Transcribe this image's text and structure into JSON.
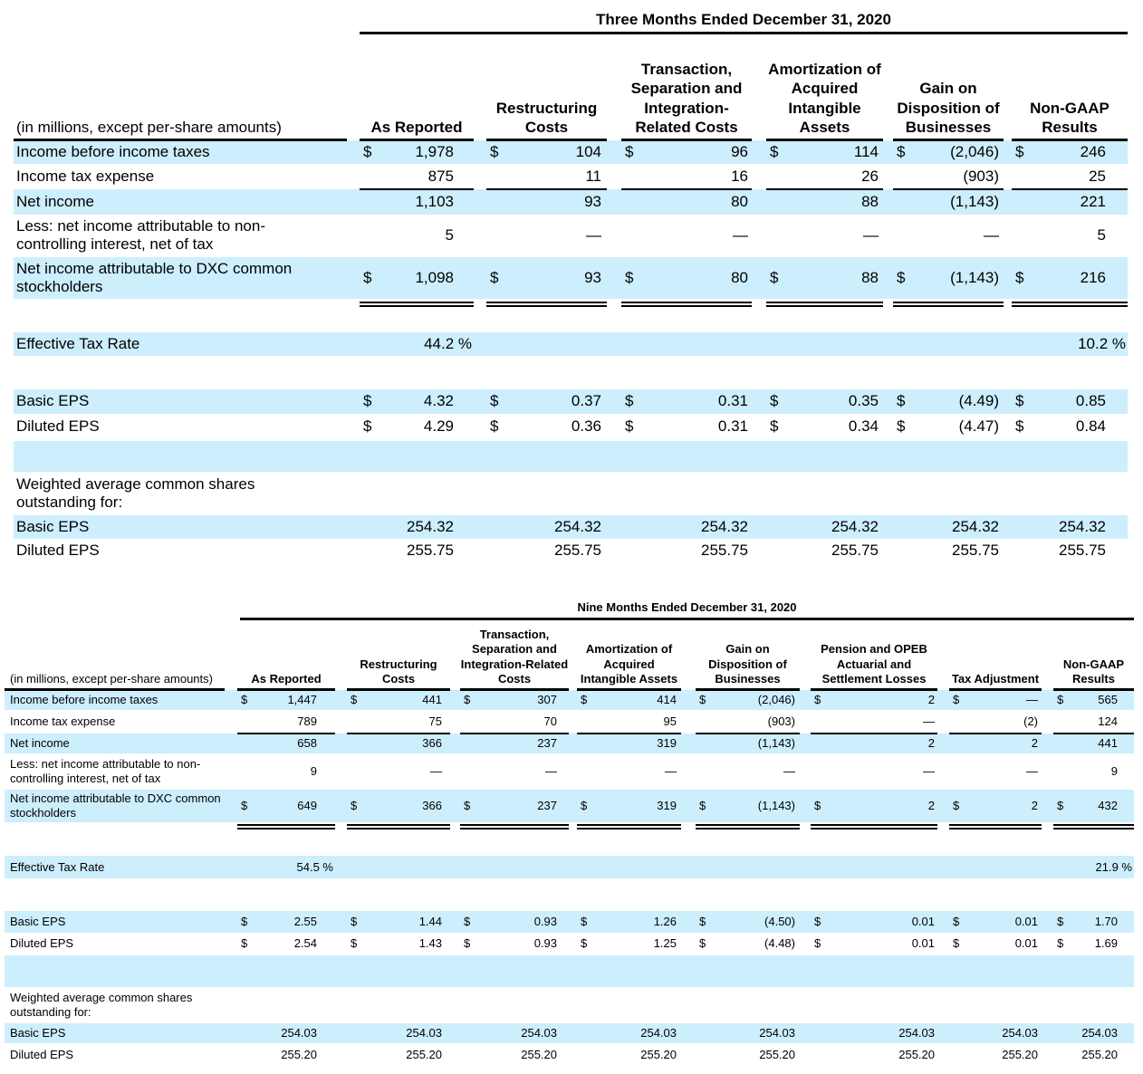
{
  "tables": [
    {
      "title": "Three Months Ended December 31, 2020",
      "units": "(in millions, except per-share amounts)",
      "columns": [
        "As Reported",
        "Restructuring Costs",
        "Transaction, Separation and Integration-Related Costs",
        "Amortization of Acquired Intangible Assets",
        "Gain on Disposition of Businesses",
        "Non-GAAP Results"
      ],
      "rows": [
        {
          "label": "Income before income taxes",
          "cells": [
            [
              "$",
              "1,978"
            ],
            [
              "$",
              "104"
            ],
            [
              "$",
              "96"
            ],
            [
              "$",
              "114"
            ],
            [
              "$",
              "(2,046)"
            ],
            [
              "$",
              "246"
            ]
          ]
        },
        {
          "label": "Income tax expense",
          "cells": [
            "875",
            "11",
            "16",
            "26",
            "(903)",
            "25"
          ]
        },
        {
          "label": "Net income",
          "cells": [
            "1,103",
            "93",
            "80",
            "88",
            "(1,143)",
            "221"
          ]
        },
        {
          "label": "Less: net income attributable to non-controlling interest, net of tax",
          "cells": [
            "5",
            "—",
            "—",
            "—",
            "—",
            "5"
          ]
        },
        {
          "label": "Net income attributable to DXC common stockholders",
          "cells": [
            [
              "$",
              "1,098"
            ],
            [
              "$",
              "93"
            ],
            [
              "$",
              "80"
            ],
            [
              "$",
              "88"
            ],
            [
              "$",
              "(1,143)"
            ],
            [
              "$",
              "216"
            ]
          ]
        },
        {
          "label": "Effective Tax Rate",
          "cells": [
            "44.2 %",
            null,
            null,
            null,
            null,
            "10.2 %"
          ]
        },
        {
          "label": "Basic EPS",
          "cells": [
            [
              "$",
              "4.32"
            ],
            [
              "$",
              "0.37"
            ],
            [
              "$",
              "0.31"
            ],
            [
              "$",
              "0.35"
            ],
            [
              "$",
              "(4.49)"
            ],
            [
              "$",
              "0.85"
            ]
          ]
        },
        {
          "label": "Diluted EPS",
          "cells": [
            [
              "$",
              "4.29"
            ],
            [
              "$",
              "0.36"
            ],
            [
              "$",
              "0.31"
            ],
            [
              "$",
              "0.34"
            ],
            [
              "$",
              "(4.47)"
            ],
            [
              "$",
              "0.84"
            ]
          ]
        },
        {
          "label": "Weighted average common shares outstanding for:"
        },
        {
          "label": "Basic EPS",
          "cells": [
            "254.32",
            "254.32",
            "254.32",
            "254.32",
            "254.32",
            "254.32"
          ]
        },
        {
          "label": "Diluted EPS",
          "cells": [
            "255.75",
            "255.75",
            "255.75",
            "255.75",
            "255.75",
            "255.75"
          ]
        }
      ]
    },
    {
      "title": "Nine Months Ended December 31, 2020",
      "units": "(in millions, except per-share amounts)",
      "columns": [
        "As Reported",
        "Restructuring Costs",
        "Transaction, Separation and Integration-Related Costs",
        "Amortization of Acquired Intangible Assets",
        "Gain on Disposition of Businesses",
        "Pension and OPEB Actuarial and Settlement Losses",
        "Tax Adjustment",
        "Non-GAAP Results"
      ],
      "rows": [
        {
          "label": "Income before income taxes",
          "cells": [
            [
              "$",
              "1,447"
            ],
            [
              "$",
              "441"
            ],
            [
              "$",
              "307"
            ],
            [
              "$",
              "414"
            ],
            [
              "$",
              "(2,046)"
            ],
            [
              "$",
              "2"
            ],
            [
              "$",
              "—"
            ],
            [
              "$",
              "565"
            ]
          ]
        },
        {
          "label": "Income tax expense",
          "cells": [
            "789",
            "75",
            "70",
            "95",
            "(903)",
            "—",
            "(2)",
            "124"
          ]
        },
        {
          "label": "Net income",
          "cells": [
            "658",
            "366",
            "237",
            "319",
            "(1,143)",
            "2",
            "2",
            "441"
          ]
        },
        {
          "label": "Less: net income attributable to non-controlling interest, net of tax",
          "cells": [
            "9",
            "—",
            "—",
            "—",
            "—",
            "—",
            "—",
            "9"
          ]
        },
        {
          "label": "Net income attributable to DXC common stockholders",
          "cells": [
            [
              "$",
              "649"
            ],
            [
              "$",
              "366"
            ],
            [
              "$",
              "237"
            ],
            [
              "$",
              "319"
            ],
            [
              "$",
              "(1,143)"
            ],
            [
              "$",
              "2"
            ],
            [
              "$",
              "2"
            ],
            [
              "$",
              "432"
            ]
          ]
        },
        {
          "label": "Effective Tax Rate",
          "cells": [
            "54.5 %",
            null,
            null,
            null,
            null,
            null,
            null,
            "21.9 %"
          ]
        },
        {
          "label": "Basic EPS",
          "cells": [
            [
              "$",
              "2.55"
            ],
            [
              "$",
              "1.44"
            ],
            [
              "$",
              "0.93"
            ],
            [
              "$",
              "1.26"
            ],
            [
              "$",
              "(4.50)"
            ],
            [
              "$",
              "0.01"
            ],
            [
              "$",
              "0.01"
            ],
            [
              "$",
              "1.70"
            ]
          ]
        },
        {
          "label": "Diluted EPS",
          "cells": [
            [
              "$",
              "2.54"
            ],
            [
              "$",
              "1.43"
            ],
            [
              "$",
              "0.93"
            ],
            [
              "$",
              "1.25"
            ],
            [
              "$",
              "(4.48)"
            ],
            [
              "$",
              "0.01"
            ],
            [
              "$",
              "0.01"
            ],
            [
              "$",
              "1.69"
            ]
          ]
        },
        {
          "label": "Weighted average common shares outstanding for:"
        },
        {
          "label": "Basic EPS",
          "cells": [
            "254.03",
            "254.03",
            "254.03",
            "254.03",
            "254.03",
            "254.03",
            "254.03",
            "254.03"
          ]
        },
        {
          "label": "Diluted EPS",
          "cells": [
            "255.20",
            "255.20",
            "255.20",
            "255.20",
            "255.20",
            "255.20",
            "255.20",
            "255.20"
          ]
        }
      ]
    }
  ]
}
